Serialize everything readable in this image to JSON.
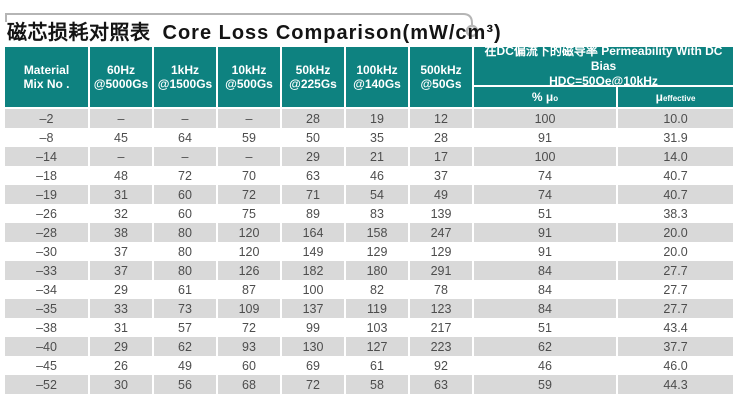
{
  "title": {
    "cn": "磁芯损耗对照表",
    "en": "Core Loss Comparison(mW/cm³)"
  },
  "colors": {
    "header_teal": "#0e8280",
    "row_stripe_gray": "#d9d9d9",
    "data_text": "#4d4d4d",
    "callout_line_gray": "#b5b5b5"
  },
  "decoration": {
    "callout_circle_icon": "circle-connector-icon"
  },
  "table": {
    "columns": [
      {
        "l1": "Material",
        "l2": "Mix No ."
      },
      {
        "l1": "60Hz",
        "l2": "@5000Gs"
      },
      {
        "l1": "1kHz",
        "l2": "@1500Gs"
      },
      {
        "l1": "10kHz",
        "l2": "@500Gs"
      },
      {
        "l1": "50kHz",
        "l2": "@225Gs"
      },
      {
        "l1": "100kHz",
        "l2": "@140Gs"
      },
      {
        "l1": "500kHz",
        "l2": "@50Gs"
      }
    ],
    "dc_bias": {
      "line1": "在DC偏流下的磁导率  Permeability With DC Bias",
      "line2": "HDC=50Oe@10kHz",
      "sub1": {
        "base": "% μ",
        "sub": "o"
      },
      "sub2": {
        "base": "μ",
        "sub": "effective"
      }
    },
    "rows": [
      [
        "–2",
        "–",
        "–",
        "–",
        "28",
        "19",
        "12",
        "100",
        "10.0"
      ],
      [
        "–8",
        "45",
        "64",
        "59",
        "50",
        "35",
        "28",
        "91",
        "31.9"
      ],
      [
        "–14",
        "–",
        "–",
        "–",
        "29",
        "21",
        "17",
        "100",
        "14.0"
      ],
      [
        "–18",
        "48",
        "72",
        "70",
        "63",
        "46",
        "37",
        "74",
        "40.7"
      ],
      [
        "–19",
        "31",
        "60",
        "72",
        "71",
        "54",
        "49",
        "74",
        "40.7"
      ],
      [
        "–26",
        "32",
        "60",
        "75",
        "89",
        "83",
        "139",
        "51",
        "38.3"
      ],
      [
        "–28",
        "38",
        "80",
        "120",
        "164",
        "158",
        "247",
        "91",
        "20.0"
      ],
      [
        "–30",
        "37",
        "80",
        "120",
        "149",
        "129",
        "129",
        "91",
        "20.0"
      ],
      [
        "–33",
        "37",
        "80",
        "126",
        "182",
        "180",
        "291",
        "84",
        "27.7"
      ],
      [
        "–34",
        "29",
        "61",
        "87",
        "100",
        "82",
        "78",
        "84",
        "27.7"
      ],
      [
        "–35",
        "33",
        "73",
        "109",
        "137",
        "119",
        "123",
        "84",
        "27.7"
      ],
      [
        "–38",
        "31",
        "57",
        "72",
        "99",
        "103",
        "217",
        "51",
        "43.4"
      ],
      [
        "–40",
        "29",
        "62",
        "93",
        "130",
        "127",
        "223",
        "62",
        "37.7"
      ],
      [
        "–45",
        "26",
        "49",
        "60",
        "69",
        "61",
        "92",
        "46",
        "46.0"
      ],
      [
        "–52",
        "30",
        "56",
        "68",
        "72",
        "58",
        "63",
        "59",
        "44.3"
      ]
    ]
  }
}
